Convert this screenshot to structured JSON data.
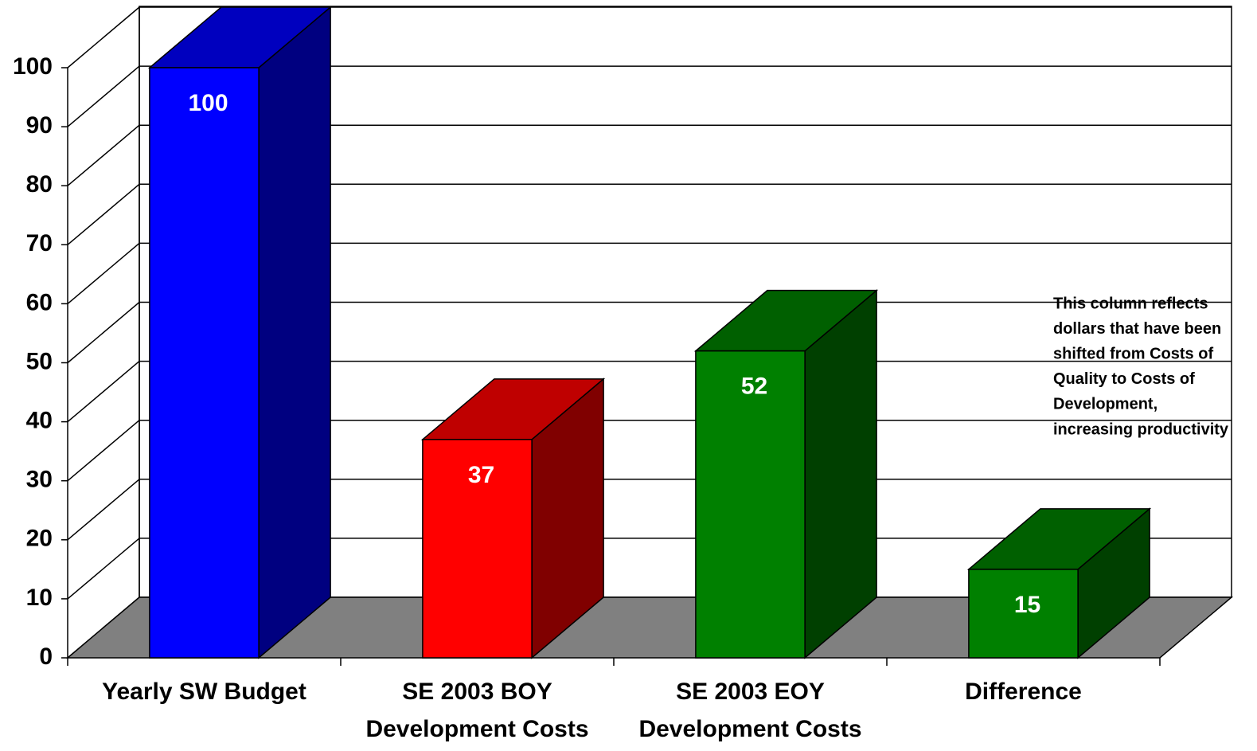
{
  "chart_data": {
    "type": "bar3d",
    "categories": [
      [
        "Yearly SW Budget"
      ],
      [
        "SE 2003 BOY",
        "Development Costs"
      ],
      [
        "SE 2003 EOY",
        "Development Costs"
      ],
      [
        "Difference"
      ]
    ],
    "values": [
      100,
      37,
      52,
      15
    ],
    "colors": [
      "#0000ff",
      "#ff0000",
      "#008000",
      "#008000"
    ],
    "ylim": [
      0,
      100
    ],
    "yticks": [
      0,
      10,
      20,
      30,
      40,
      50,
      60,
      70,
      80,
      90,
      100
    ],
    "grid": true,
    "annotation": [
      "This column reflects",
      "dollars that have been",
      "shifted from Costs of",
      "Quality to Costs of",
      "Development,",
      "increasing productivity"
    ]
  }
}
